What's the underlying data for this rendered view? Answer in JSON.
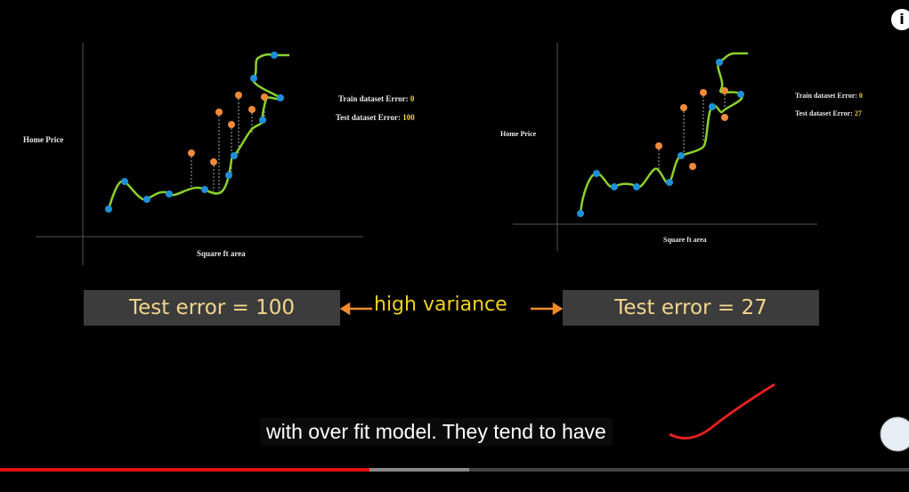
{
  "info_icon": "i",
  "left_slide": {
    "y_label": "Home Price",
    "x_label": "Square ft area",
    "train_label": "Train dataset Error:",
    "train_value": "0",
    "test_label": "Test dataset Error:",
    "test_value": "100"
  },
  "right_slide": {
    "y_label": "Home Price",
    "x_label": "Square ft area",
    "train_label": "Train dataset Error:",
    "train_value": "0",
    "test_label": "Test dataset Error:",
    "test_value": "27"
  },
  "banner": {
    "left_box": "Test error = 100",
    "middle": "high variance",
    "right_box": "Test error = 27"
  },
  "caption": "with over fit model. They tend to have"
}
